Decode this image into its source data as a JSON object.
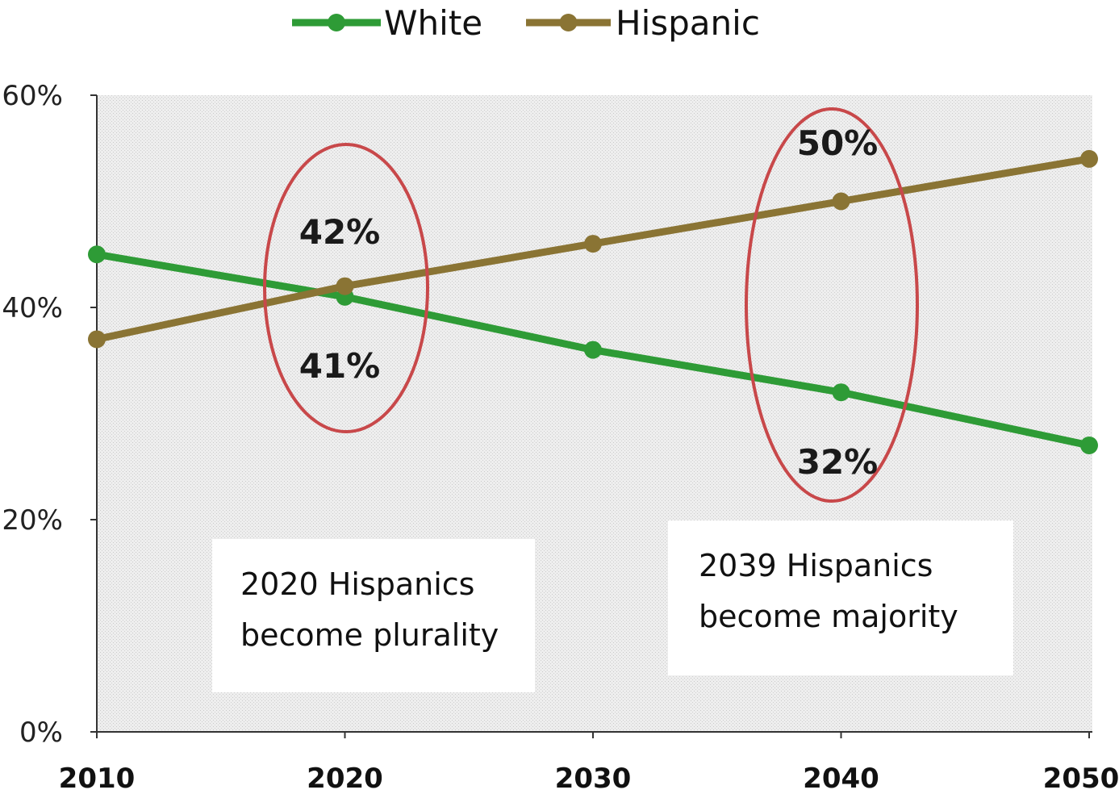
{
  "chart_data": {
    "type": "line",
    "x": [
      2010,
      2020,
      2030,
      2040,
      2050
    ],
    "xlim": [
      2010,
      2050
    ],
    "ylim": [
      0,
      60
    ],
    "ytick_labels": [
      "0%",
      "20%",
      "40%",
      "60%"
    ],
    "xtick_labels": [
      "2010",
      "2020",
      "2030",
      "2040",
      "2050"
    ],
    "grid": false,
    "legend_position": "top",
    "series": [
      {
        "name": "White",
        "color": "#2e9b36",
        "values": [
          45,
          41,
          36,
          32,
          27
        ]
      },
      {
        "name": "Hispanic",
        "color": "#8a7434",
        "values": [
          37,
          42,
          46,
          50,
          54
        ]
      }
    ],
    "annotations": {
      "label_42": "42%",
      "label_41": "41%",
      "label_50": "50%",
      "label_32": "32%",
      "box1_line1": "2020 Hispanics",
      "box1_line2": "become plurality",
      "box2_line1": "2039 Hispanics",
      "box2_line2": "become majority"
    },
    "ellipse_color": "#c8484a",
    "plot_bg": "#dcdcdc"
  }
}
